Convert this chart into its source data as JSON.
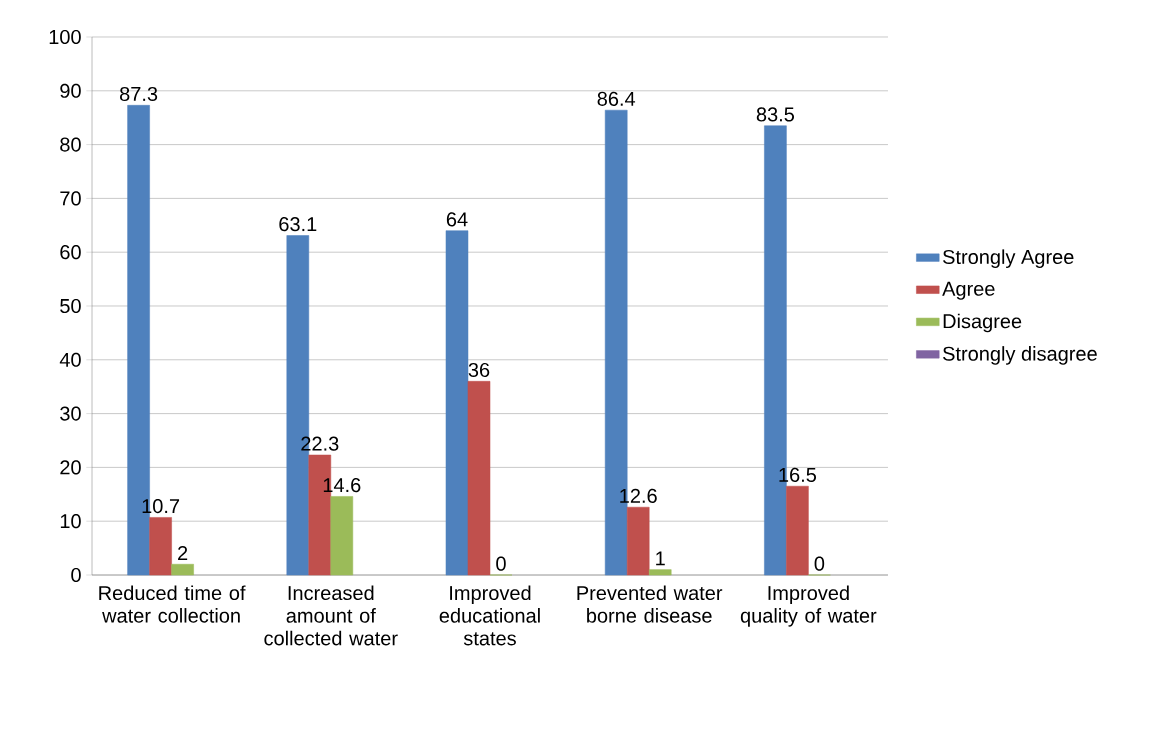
{
  "chart_data": {
    "type": "bar",
    "categories": [
      "Reduced time of water collection",
      "Increased amount of collected water",
      "Improved educational states",
      "Prevented water borne disease",
      "Improved quality of water"
    ],
    "series": [
      {
        "name": "Strongly Agree",
        "color": "#4f81bd",
        "values": [
          87.3,
          63.1,
          64,
          86.4,
          83.5
        ]
      },
      {
        "name": "Agree",
        "color": "#c0504d",
        "values": [
          10.7,
          22.3,
          36,
          12.6,
          16.5
        ]
      },
      {
        "name": "Disagree",
        "color": "#9bbb59",
        "values": [
          2,
          14.6,
          0,
          1,
          0
        ]
      },
      {
        "name": "Strongly   disagree",
        "color": "#8064a2",
        "values": [
          null,
          null,
          null,
          null,
          null
        ]
      }
    ],
    "ylim": [
      0,
      100
    ],
    "yticks": [
      0,
      10,
      20,
      30,
      40,
      50,
      60,
      70,
      80,
      90,
      100
    ],
    "grid": "y",
    "legend": "right",
    "data_labels": true
  }
}
